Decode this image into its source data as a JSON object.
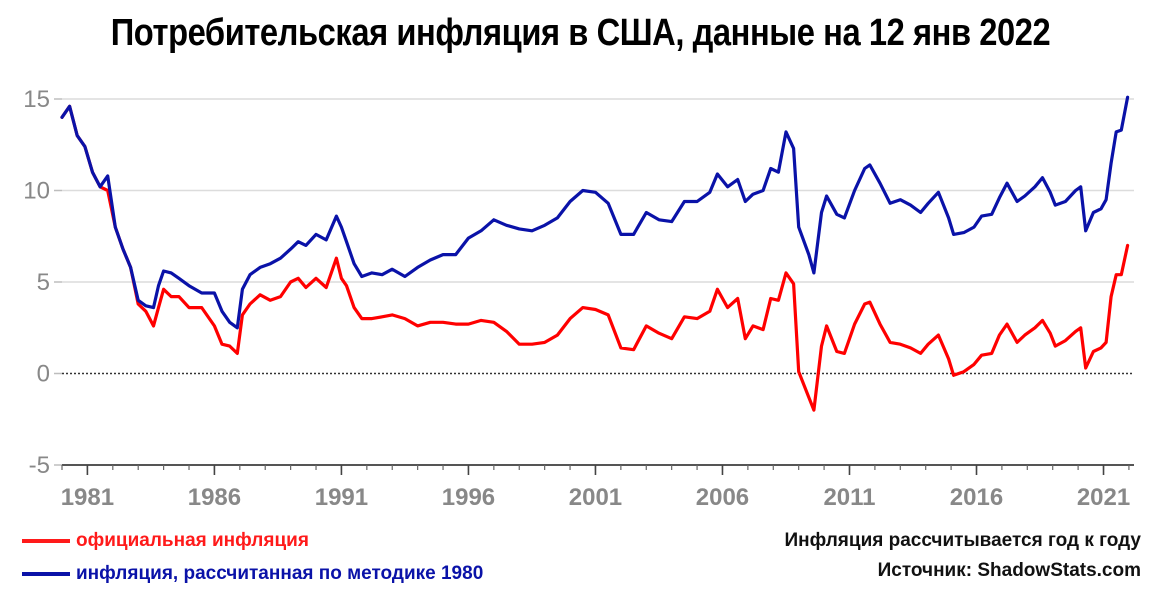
{
  "chart_data": {
    "type": "line",
    "title": "Потребительская инфляция в США, данные на 12 янв 2022",
    "xlabel": "",
    "ylabel": "",
    "xlim": [
      1980,
      2022.2
    ],
    "ylim": [
      -5,
      15
    ],
    "y_ticks": [
      "15",
      "10",
      "5",
      "0",
      "-5"
    ],
    "x_ticks": [
      "1981",
      "1986",
      "1991",
      "1996",
      "2001",
      "2006",
      "2011",
      "2016",
      "2021"
    ],
    "grid": true,
    "zero_line": "dotted",
    "legend_position": "bottom-left",
    "series": [
      {
        "name": "официальная инфляция",
        "color": "#ff0000",
        "points": [
          [
            1980.0,
            14.0
          ],
          [
            1980.3,
            14.6
          ],
          [
            1980.6,
            13.0
          ],
          [
            1980.9,
            12.4
          ],
          [
            1981.2,
            11.0
          ],
          [
            1981.5,
            10.2
          ],
          [
            1981.8,
            10.0
          ],
          [
            1982.1,
            8.0
          ],
          [
            1982.4,
            6.8
          ],
          [
            1982.7,
            5.8
          ],
          [
            1983.0,
            3.8
          ],
          [
            1983.3,
            3.4
          ],
          [
            1983.6,
            2.6
          ],
          [
            1983.8,
            3.6
          ],
          [
            1984.0,
            4.6
          ],
          [
            1984.3,
            4.2
          ],
          [
            1984.6,
            4.2
          ],
          [
            1985.0,
            3.6
          ],
          [
            1985.5,
            3.6
          ],
          [
            1986.0,
            2.6
          ],
          [
            1986.3,
            1.6
          ],
          [
            1986.6,
            1.5
          ],
          [
            1986.9,
            1.1
          ],
          [
            1987.1,
            3.2
          ],
          [
            1987.4,
            3.8
          ],
          [
            1987.8,
            4.3
          ],
          [
            1988.2,
            4.0
          ],
          [
            1988.6,
            4.2
          ],
          [
            1989.0,
            5.0
          ],
          [
            1989.3,
            5.2
          ],
          [
            1989.6,
            4.7
          ],
          [
            1990.0,
            5.2
          ],
          [
            1990.4,
            4.7
          ],
          [
            1990.8,
            6.3
          ],
          [
            1991.0,
            5.2
          ],
          [
            1991.2,
            4.8
          ],
          [
            1991.5,
            3.6
          ],
          [
            1991.8,
            3.0
          ],
          [
            1992.2,
            3.0
          ],
          [
            1992.6,
            3.1
          ],
          [
            1993.0,
            3.2
          ],
          [
            1993.5,
            3.0
          ],
          [
            1994.0,
            2.6
          ],
          [
            1994.5,
            2.8
          ],
          [
            1995.0,
            2.8
          ],
          [
            1995.5,
            2.7
          ],
          [
            1996.0,
            2.7
          ],
          [
            1996.5,
            2.9
          ],
          [
            1997.0,
            2.8
          ],
          [
            1997.5,
            2.3
          ],
          [
            1998.0,
            1.6
          ],
          [
            1998.5,
            1.6
          ],
          [
            1999.0,
            1.7
          ],
          [
            1999.5,
            2.1
          ],
          [
            2000.0,
            3.0
          ],
          [
            2000.5,
            3.6
          ],
          [
            2001.0,
            3.5
          ],
          [
            2001.5,
            3.2
          ],
          [
            2002.0,
            1.4
          ],
          [
            2002.5,
            1.3
          ],
          [
            2003.0,
            2.6
          ],
          [
            2003.5,
            2.2
          ],
          [
            2004.0,
            1.9
          ],
          [
            2004.5,
            3.1
          ],
          [
            2005.0,
            3.0
          ],
          [
            2005.5,
            3.4
          ],
          [
            2005.8,
            4.6
          ],
          [
            2006.2,
            3.6
          ],
          [
            2006.6,
            4.1
          ],
          [
            2006.9,
            1.9
          ],
          [
            2007.2,
            2.6
          ],
          [
            2007.6,
            2.4
          ],
          [
            2007.9,
            4.1
          ],
          [
            2008.2,
            4.0
          ],
          [
            2008.5,
            5.5
          ],
          [
            2008.8,
            4.9
          ],
          [
            2009.0,
            0.1
          ],
          [
            2009.4,
            -1.3
          ],
          [
            2009.6,
            -2.0
          ],
          [
            2009.9,
            1.5
          ],
          [
            2010.1,
            2.6
          ],
          [
            2010.5,
            1.2
          ],
          [
            2010.8,
            1.1
          ],
          [
            2011.2,
            2.7
          ],
          [
            2011.6,
            3.8
          ],
          [
            2011.8,
            3.9
          ],
          [
            2012.2,
            2.7
          ],
          [
            2012.6,
            1.7
          ],
          [
            2013.0,
            1.6
          ],
          [
            2013.4,
            1.4
          ],
          [
            2013.8,
            1.1
          ],
          [
            2014.1,
            1.6
          ],
          [
            2014.5,
            2.1
          ],
          [
            2014.9,
            0.8
          ],
          [
            2015.1,
            -0.1
          ],
          [
            2015.5,
            0.1
          ],
          [
            2015.9,
            0.5
          ],
          [
            2016.2,
            1.0
          ],
          [
            2016.6,
            1.1
          ],
          [
            2016.9,
            2.1
          ],
          [
            2017.2,
            2.7
          ],
          [
            2017.6,
            1.7
          ],
          [
            2017.9,
            2.1
          ],
          [
            2018.3,
            2.5
          ],
          [
            2018.6,
            2.9
          ],
          [
            2018.9,
            2.2
          ],
          [
            2019.1,
            1.5
          ],
          [
            2019.5,
            1.8
          ],
          [
            2019.9,
            2.3
          ],
          [
            2020.1,
            2.5
          ],
          [
            2020.3,
            0.3
          ],
          [
            2020.6,
            1.2
          ],
          [
            2020.9,
            1.4
          ],
          [
            2021.1,
            1.7
          ],
          [
            2021.3,
            4.2
          ],
          [
            2021.5,
            5.4
          ],
          [
            2021.7,
            5.4
          ],
          [
            2021.95,
            7.0
          ]
        ]
      },
      {
        "name": "инфляция, рассчитанная по методике 1980",
        "color": "#0a12a8",
        "points": [
          [
            1980.0,
            14.0
          ],
          [
            1980.3,
            14.6
          ],
          [
            1980.6,
            13.0
          ],
          [
            1980.9,
            12.4
          ],
          [
            1981.2,
            11.0
          ],
          [
            1981.5,
            10.2
          ],
          [
            1981.8,
            10.8
          ],
          [
            1982.1,
            8.0
          ],
          [
            1982.4,
            6.8
          ],
          [
            1982.7,
            5.8
          ],
          [
            1983.0,
            4.0
          ],
          [
            1983.3,
            3.7
          ],
          [
            1983.6,
            3.6
          ],
          [
            1983.8,
            4.8
          ],
          [
            1984.0,
            5.6
          ],
          [
            1984.3,
            5.5
          ],
          [
            1984.6,
            5.2
          ],
          [
            1985.0,
            4.8
          ],
          [
            1985.5,
            4.4
          ],
          [
            1986.0,
            4.4
          ],
          [
            1986.3,
            3.4
          ],
          [
            1986.6,
            2.8
          ],
          [
            1986.9,
            2.5
          ],
          [
            1987.1,
            4.6
          ],
          [
            1987.4,
            5.4
          ],
          [
            1987.8,
            5.8
          ],
          [
            1988.2,
            6.0
          ],
          [
            1988.6,
            6.3
          ],
          [
            1989.0,
            6.8
          ],
          [
            1989.3,
            7.2
          ],
          [
            1989.6,
            7.0
          ],
          [
            1990.0,
            7.6
          ],
          [
            1990.4,
            7.3
          ],
          [
            1990.8,
            8.6
          ],
          [
            1991.0,
            8.0
          ],
          [
            1991.2,
            7.2
          ],
          [
            1991.5,
            6.0
          ],
          [
            1991.8,
            5.3
          ],
          [
            1992.2,
            5.5
          ],
          [
            1992.6,
            5.4
          ],
          [
            1993.0,
            5.7
          ],
          [
            1993.5,
            5.3
          ],
          [
            1994.0,
            5.8
          ],
          [
            1994.5,
            6.2
          ],
          [
            1995.0,
            6.5
          ],
          [
            1995.5,
            6.5
          ],
          [
            1996.0,
            7.4
          ],
          [
            1996.5,
            7.8
          ],
          [
            1997.0,
            8.4
          ],
          [
            1997.5,
            8.1
          ],
          [
            1998.0,
            7.9
          ],
          [
            1998.5,
            7.8
          ],
          [
            1999.0,
            8.1
          ],
          [
            1999.5,
            8.5
          ],
          [
            2000.0,
            9.4
          ],
          [
            2000.5,
            10.0
          ],
          [
            2001.0,
            9.9
          ],
          [
            2001.5,
            9.3
          ],
          [
            2002.0,
            7.6
          ],
          [
            2002.5,
            7.6
          ],
          [
            2003.0,
            8.8
          ],
          [
            2003.5,
            8.4
          ],
          [
            2004.0,
            8.3
          ],
          [
            2004.5,
            9.4
          ],
          [
            2005.0,
            9.4
          ],
          [
            2005.5,
            9.9
          ],
          [
            2005.8,
            10.9
          ],
          [
            2006.2,
            10.2
          ],
          [
            2006.6,
            10.6
          ],
          [
            2006.9,
            9.4
          ],
          [
            2007.2,
            9.8
          ],
          [
            2007.6,
            10.0
          ],
          [
            2007.9,
            11.2
          ],
          [
            2008.2,
            11.0
          ],
          [
            2008.5,
            13.2
          ],
          [
            2008.8,
            12.3
          ],
          [
            2009.0,
            8.0
          ],
          [
            2009.4,
            6.5
          ],
          [
            2009.6,
            5.5
          ],
          [
            2009.9,
            8.8
          ],
          [
            2010.1,
            9.7
          ],
          [
            2010.5,
            8.7
          ],
          [
            2010.8,
            8.5
          ],
          [
            2011.2,
            10.0
          ],
          [
            2011.6,
            11.2
          ],
          [
            2011.8,
            11.4
          ],
          [
            2012.2,
            10.4
          ],
          [
            2012.6,
            9.3
          ],
          [
            2013.0,
            9.5
          ],
          [
            2013.4,
            9.2
          ],
          [
            2013.8,
            8.8
          ],
          [
            2014.1,
            9.3
          ],
          [
            2014.5,
            9.9
          ],
          [
            2014.9,
            8.5
          ],
          [
            2015.1,
            7.6
          ],
          [
            2015.5,
            7.7
          ],
          [
            2015.9,
            8.0
          ],
          [
            2016.2,
            8.6
          ],
          [
            2016.6,
            8.7
          ],
          [
            2016.9,
            9.6
          ],
          [
            2017.2,
            10.4
          ],
          [
            2017.6,
            9.4
          ],
          [
            2017.9,
            9.7
          ],
          [
            2018.3,
            10.2
          ],
          [
            2018.6,
            10.7
          ],
          [
            2018.9,
            9.9
          ],
          [
            2019.1,
            9.2
          ],
          [
            2019.5,
            9.4
          ],
          [
            2019.9,
            10.0
          ],
          [
            2020.1,
            10.2
          ],
          [
            2020.3,
            7.8
          ],
          [
            2020.6,
            8.8
          ],
          [
            2020.9,
            9.0
          ],
          [
            2021.1,
            9.5
          ],
          [
            2021.3,
            11.5
          ],
          [
            2021.5,
            13.2
          ],
          [
            2021.7,
            13.3
          ],
          [
            2021.95,
            15.1
          ]
        ]
      }
    ]
  },
  "legend": {
    "official_label": "официальная инфляция",
    "shadow_label": "инфляция, рассчитанная по методике 1980"
  },
  "notes": {
    "line1": "Инфляция рассчитывается год к году",
    "line2": "Источник: ShadowStats.com"
  }
}
